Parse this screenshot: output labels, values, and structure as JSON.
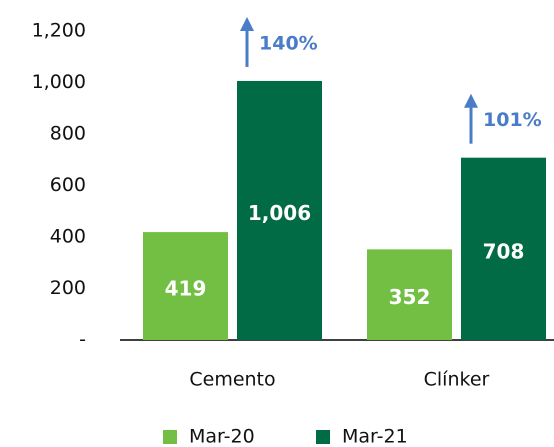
{
  "chart_data": {
    "type": "bar",
    "categories": [
      "Cemento",
      "Clínker"
    ],
    "series": [
      {
        "name": "Mar-20",
        "color": "#72bf44",
        "values": [
          419,
          352
        ],
        "value_labels": [
          "419",
          "352"
        ]
      },
      {
        "name": "Mar-21",
        "color": "#006b45",
        "values": [
          1006,
          708
        ],
        "value_labels": [
          "1,006",
          "708"
        ]
      }
    ],
    "annotations": [
      {
        "text": "140%"
      },
      {
        "text": "101%"
      }
    ],
    "annotation_color": "#4a7cc7",
    "ylim": [
      0,
      1200
    ],
    "yticks": [
      {
        "value": 0,
        "label": "-"
      },
      200,
      400,
      600,
      800,
      {
        "value": 1000,
        "label": "1,000"
      },
      {
        "value": 1200,
        "label": "1,200"
      }
    ],
    "grid": false,
    "legend": "bottom"
  }
}
